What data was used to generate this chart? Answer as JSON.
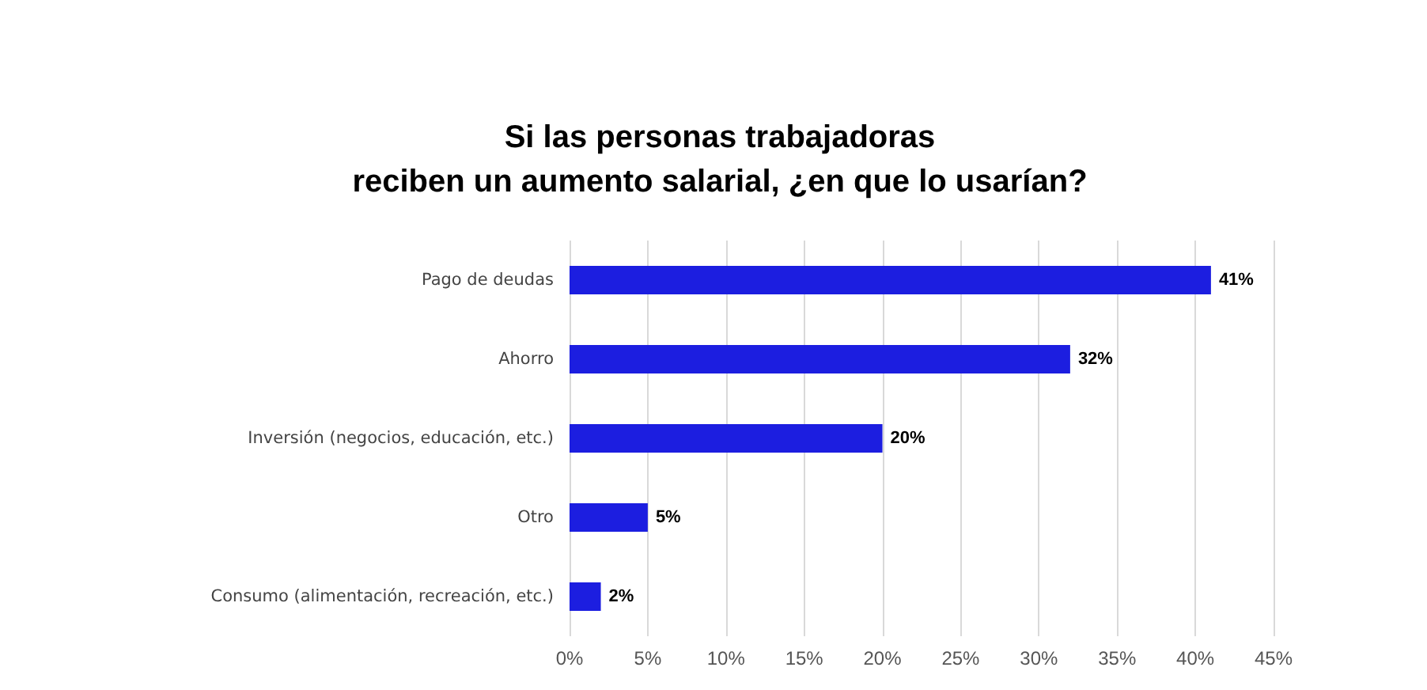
{
  "chart_data": {
    "type": "bar",
    "orientation": "horizontal",
    "title": "Si las personas trabajadoras\nreciben un aumento salarial, ¿en que lo usarían?",
    "categories": [
      "Pago de deudas",
      "Ahorro",
      "Inversión (negocios, educación, etc.)",
      "Otro",
      "Consumo (alimentación, recreación, etc.)"
    ],
    "values": [
      41,
      32,
      20,
      5,
      2
    ],
    "value_labels": [
      "41%",
      "32%",
      "20%",
      "5%",
      "2%"
    ],
    "color": "#1c1ee0",
    "xlim": [
      0,
      45
    ],
    "xticks": [
      {
        "value": 0,
        "label": "0%"
      },
      {
        "value": 5,
        "label": "5%"
      },
      {
        "value": 10,
        "label": "10%"
      },
      {
        "value": 15,
        "label": "15%"
      },
      {
        "value": 20,
        "label": "20%"
      },
      {
        "value": 25,
        "label": "25%"
      },
      {
        "value": 30,
        "label": "30%"
      },
      {
        "value": 35,
        "label": "35%"
      },
      {
        "value": 40,
        "label": "40%"
      },
      {
        "value": 45,
        "label": "45%"
      }
    ],
    "grid": "x"
  }
}
